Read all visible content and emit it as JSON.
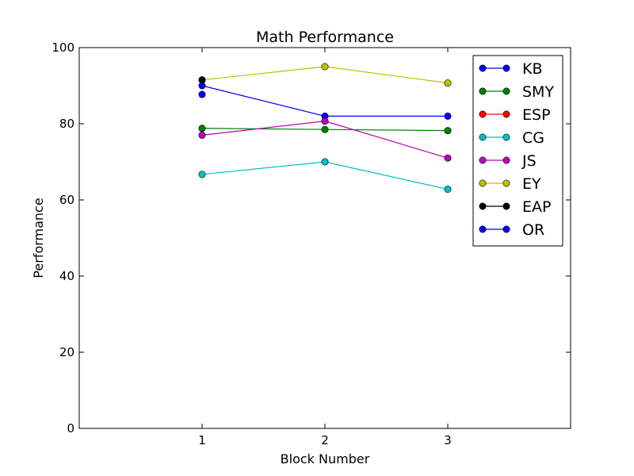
{
  "chart_data": {
    "type": "line",
    "title": "Math Performance",
    "xlabel": "Block Number",
    "ylabel": "Performance",
    "xlim": [
      0,
      4
    ],
    "ylim": [
      0,
      100
    ],
    "xticks": [
      1,
      2,
      3
    ],
    "yticks": [
      0,
      20,
      40,
      60,
      80,
      100
    ],
    "grid": false,
    "legend_position": "top-right",
    "series": [
      {
        "name": "KB",
        "color": "#0000ff",
        "x": [
          1,
          2,
          3
        ],
        "y": [
          90,
          82,
          82
        ]
      },
      {
        "name": "SMY",
        "color": "#008000",
        "x": [
          1,
          2,
          3
        ],
        "y": [
          78.8,
          78.5,
          78.2
        ]
      },
      {
        "name": "ESP",
        "color": "#ff0000",
        "x": [],
        "y": []
      },
      {
        "name": "CG",
        "color": "#00bfbf",
        "x": [
          1,
          2,
          3
        ],
        "y": [
          66.7,
          70,
          62.8
        ]
      },
      {
        "name": "JS",
        "color": "#bf00bf",
        "x": [
          1,
          2,
          3
        ],
        "y": [
          77,
          80.7,
          71
        ]
      },
      {
        "name": "EY",
        "color": "#bfbf00",
        "x": [
          1,
          2,
          3
        ],
        "y": [
          91.5,
          95,
          90.7
        ]
      },
      {
        "name": "EAP",
        "color": "#000000",
        "x": [
          1
        ],
        "y": [
          91.5
        ]
      },
      {
        "name": "OR",
        "color": "#0000ff",
        "x": [
          1
        ],
        "y": [
          87.7
        ]
      }
    ]
  }
}
